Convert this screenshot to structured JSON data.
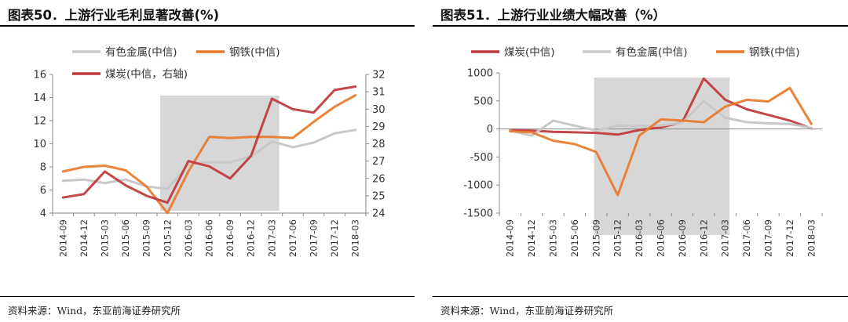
{
  "charts": [
    {
      "title": "图表50．上游行业毛利显著改善(%)",
      "source": "资料来源：Wind，东亚前海证券研究所",
      "chart_data": {
        "type": "line",
        "categories": [
          "2014-09",
          "2014-12",
          "2015-03",
          "2015-06",
          "2015-09",
          "2015-12",
          "2016-03",
          "2016-06",
          "2016-09",
          "2016-12",
          "2017-03",
          "2017-06",
          "2017-09",
          "2017-12",
          "2018-03"
        ],
        "y_left": {
          "lim": [
            4,
            16
          ],
          "ticks": [
            4,
            6,
            8,
            10,
            12,
            14,
            16
          ]
        },
        "y_right": {
          "lim": [
            24,
            32
          ],
          "ticks": [
            24,
            25,
            26,
            27,
            28,
            29,
            30,
            31,
            32
          ]
        },
        "shaded_range": [
          "2015-12",
          "2017-03"
        ],
        "grid": false,
        "legend": [
          {
            "name": "有色金属(中信)",
            "series": 0
          },
          {
            "name": "钢铁(中信)",
            "series": 1
          },
          {
            "name": "煤炭(中信，右轴)",
            "series": 2
          }
        ],
        "series": [
          {
            "name": "有色金属(中信)",
            "color": "#c8c8c8",
            "axis": "left",
            "values": [
              6.8,
              6.9,
              6.6,
              6.9,
              6.3,
              6.1,
              8.2,
              8.4,
              8.4,
              8.9,
              10.2,
              9.7,
              10.1,
              10.9,
              11.2
            ]
          },
          {
            "name": "钢铁(中信)",
            "color": "#e8782a",
            "axis": "left",
            "values": [
              7.6,
              8.0,
              8.1,
              7.7,
              6.3,
              4.0,
              7.6,
              10.6,
              10.5,
              10.6,
              10.6,
              10.5,
              11.9,
              13.2,
              14.2
            ]
          },
          {
            "name": "煤炭(中信，右轴)",
            "color": "#c0373b",
            "axis": "right",
            "values": [
              24.9,
              25.1,
              26.4,
              25.6,
              25.0,
              24.6,
              27.0,
              26.7,
              26.0,
              27.3,
              30.6,
              30.0,
              29.8,
              31.1,
              31.3
            ]
          }
        ]
      }
    },
    {
      "title": "图表51．上游行业业绩大幅改善（%）",
      "source": "资料来源：Wind，东亚前海证券研究所",
      "chart_data": {
        "type": "line",
        "categories": [
          "2014-09",
          "2014-12",
          "2015-03",
          "2015-06",
          "2015-09",
          "2015-12",
          "2016-03",
          "2016-06",
          "2016-09",
          "2016-12",
          "2017-03",
          "2017-06",
          "2017-09",
          "2017-12",
          "2018-03"
        ],
        "y_left": {
          "lim": [
            -1500,
            1000
          ],
          "ticks": [
            -1500,
            -1000,
            -500,
            0,
            500,
            1000
          ]
        },
        "shaded_range": [
          "2015-09",
          "2017-03"
        ],
        "grid": false,
        "legend": [
          {
            "name": "煤炭(中信)",
            "series": 0
          },
          {
            "name": "有色金属(中信)",
            "series": 1
          },
          {
            "name": "钢铁(中信)",
            "series": 2
          }
        ],
        "series": [
          {
            "name": "煤炭(中信)",
            "color": "#c0373b",
            "axis": "left",
            "values": [
              -20,
              -30,
              -50,
              -60,
              -70,
              -100,
              -20,
              30,
              120,
              900,
              520,
              350,
              250,
              150,
              10
            ]
          },
          {
            "name": "有色金属(中信)",
            "color": "#c8c8c8",
            "axis": "left",
            "values": [
              -30,
              -120,
              150,
              60,
              -30,
              60,
              50,
              60,
              110,
              500,
              200,
              120,
              100,
              90,
              20
            ]
          },
          {
            "name": "钢铁(中信)",
            "color": "#e8782a",
            "axis": "left",
            "values": [
              -40,
              -60,
              -210,
              -270,
              -410,
              -1180,
              -120,
              170,
              150,
              120,
              400,
              520,
              490,
              730,
              90
            ]
          }
        ]
      }
    }
  ]
}
